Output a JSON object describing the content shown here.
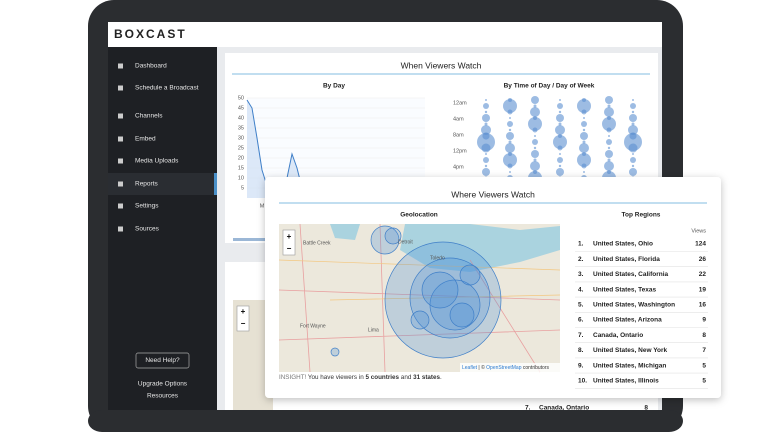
{
  "brand": "BOXCAST",
  "nav": [
    "Dashboard",
    "Schedule a Broadcast",
    "Channels",
    "Embed",
    "Media Uploads",
    "Reports",
    "Settings",
    "Sources"
  ],
  "active_nav": 5,
  "help_button": "Need Help?",
  "footer_links": [
    "Upgrade Options",
    "Resources"
  ],
  "when_panel": {
    "title": "When Viewers Watch",
    "by_day": {
      "title": "By Day",
      "yticks": [
        50,
        45,
        40,
        35,
        30,
        25,
        20,
        15,
        10,
        5
      ],
      "ylim": [
        0,
        50
      ],
      "values": [
        49,
        45,
        30,
        14,
        6,
        4,
        3,
        3,
        10,
        22,
        15,
        5,
        3,
        2,
        3,
        2,
        4,
        3,
        5,
        7,
        8,
        9
      ],
      "x_label": "M"
    },
    "by_time": {
      "title": "By Time of Day / Day of Week",
      "yticks": [
        "12am",
        "4am",
        "8am",
        "12pm",
        "4pm"
      ]
    }
  },
  "where_panel": {
    "title": "Where Viewers Watch",
    "map_title": "Geolocation",
    "zoom_in": "+",
    "zoom_out": "−",
    "cities": [
      "Battle Creek",
      "Detroit",
      "Fort Wayne",
      "Lima",
      "Toledo"
    ],
    "attribution": {
      "leaflet": "Leaflet",
      "sep": " | © ",
      "osm": "OpenStreetMap",
      "tail": " contributors"
    },
    "insight": {
      "label": "INSIGHT!",
      "before": " You have viewers in ",
      "countries": "5 countries",
      "mid": " and ",
      "states": "31 states",
      "end": "."
    },
    "regions": {
      "title": "Top Regions",
      "header": "Views",
      "rows": [
        [
          "1.",
          "United States, Ohio",
          124
        ],
        [
          "2.",
          "United States, Florida",
          26
        ],
        [
          "3.",
          "United States, California",
          22
        ],
        [
          "4.",
          "United States, Texas",
          19
        ],
        [
          "5.",
          "United States, Washington",
          16
        ],
        [
          "6.",
          "United States, Arizona",
          9
        ],
        [
          "7.",
          "Canada, Ontario",
          8
        ],
        [
          "8.",
          "United States, New York",
          7
        ],
        [
          "9.",
          "United States, Michigan",
          5
        ],
        [
          "10.",
          "United States, Illinois",
          5
        ]
      ]
    }
  },
  "background_row": [
    "7.",
    "Canada, Ontario",
    8
  ]
}
